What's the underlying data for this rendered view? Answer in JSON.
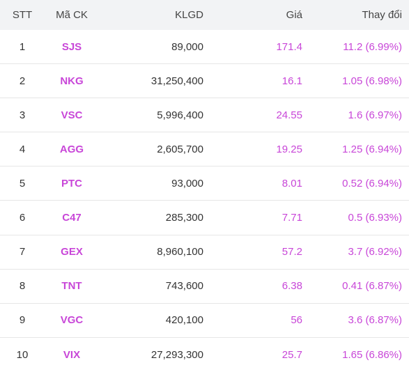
{
  "colors": {
    "up_purple": "#c846d8",
    "header_bg": "#f2f3f5",
    "row_border": "#e6e6e6",
    "text": "#333333"
  },
  "headers": {
    "stt": "STT",
    "symbol": "Mã CK",
    "volume": "KLGD",
    "price": "Giá",
    "change": "Thay đổi"
  },
  "rows": [
    {
      "stt": "1",
      "symbol": "SJS",
      "volume": "89,000",
      "price": "171.4",
      "change": "11.2 (6.99%)"
    },
    {
      "stt": "2",
      "symbol": "NKG",
      "volume": "31,250,400",
      "price": "16.1",
      "change": "1.05 (6.98%)"
    },
    {
      "stt": "3",
      "symbol": "VSC",
      "volume": "5,996,400",
      "price": "24.55",
      "change": "1.6 (6.97%)"
    },
    {
      "stt": "4",
      "symbol": "AGG",
      "volume": "2,605,700",
      "price": "19.25",
      "change": "1.25 (6.94%)"
    },
    {
      "stt": "5",
      "symbol": "PTC",
      "volume": "93,000",
      "price": "8.01",
      "change": "0.52 (6.94%)"
    },
    {
      "stt": "6",
      "symbol": "C47",
      "volume": "285,300",
      "price": "7.71",
      "change": "0.5 (6.93%)"
    },
    {
      "stt": "7",
      "symbol": "GEX",
      "volume": "8,960,100",
      "price": "57.2",
      "change": "3.7 (6.92%)"
    },
    {
      "stt": "8",
      "symbol": "TNT",
      "volume": "743,600",
      "price": "6.38",
      "change": "0.41 (6.87%)"
    },
    {
      "stt": "9",
      "symbol": "VGC",
      "volume": "420,100",
      "price": "56",
      "change": "3.6 (6.87%)"
    },
    {
      "stt": "10",
      "symbol": "VIX",
      "volume": "27,293,300",
      "price": "25.7",
      "change": "1.65 (6.86%)"
    }
  ]
}
